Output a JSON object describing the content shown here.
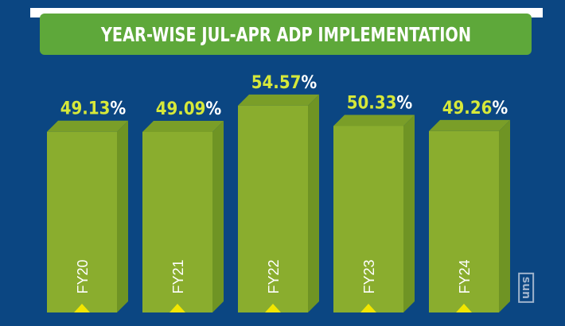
{
  "chart_data": {
    "type": "bar",
    "title": "YEAR-WISE JUL-APR ADP IMPLEMENTATION",
    "categories": [
      "FY20",
      "FY21",
      "FY22",
      "FY23",
      "FY24"
    ],
    "values": [
      49.13,
      49.09,
      54.57,
      50.33,
      49.26
    ],
    "value_labels": [
      "49.13%",
      "49.09%",
      "54.57%",
      "50.33%",
      "49.26%"
    ],
    "xlabel": "",
    "ylabel": "",
    "grid": false,
    "colors": {
      "background": "#0b4682",
      "bar_front": "#8aad2e",
      "bar_side": "#6f9424",
      "bar_top": "#7a9e28",
      "label": "#d6e83a",
      "marker": "#f2e600",
      "banner": "#5ea83a"
    }
  },
  "watermark": "sun"
}
